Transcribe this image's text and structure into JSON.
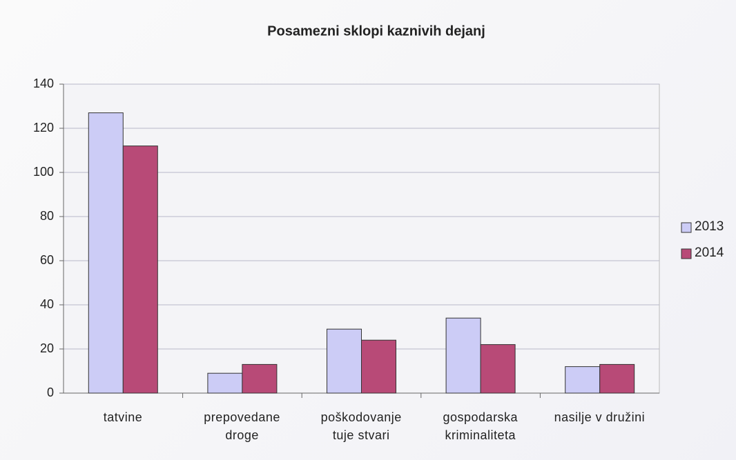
{
  "chart_data": {
    "type": "bar",
    "title": "Posamezni sklopi kaznivih dejanj",
    "categories": [
      "tatvine",
      "prepovedane\ndroge",
      "poškodovanje\ntuje stvari",
      "gospodarska\nkriminaliteta",
      "nasilje v družini"
    ],
    "series": [
      {
        "name": "2013",
        "color": "#ccccf6",
        "values": [
          127,
          9,
          29,
          34,
          12
        ]
      },
      {
        "name": "2014",
        "color": "#b84a77",
        "values": [
          112,
          13,
          24,
          22,
          13
        ]
      }
    ],
    "ylim": [
      0,
      140
    ],
    "yticks": [
      0,
      20,
      40,
      60,
      80,
      100,
      120,
      140
    ],
    "grid": true,
    "legend": "right"
  }
}
